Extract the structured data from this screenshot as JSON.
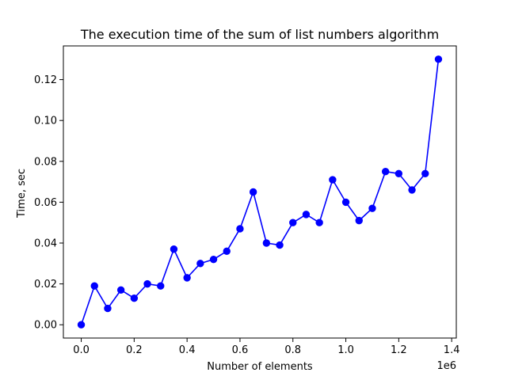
{
  "chart_data": {
    "type": "line",
    "title": "The execution time of the sum of list numbers algorithm",
    "xlabel": "Number of elements",
    "ylabel": "Time, sec",
    "x_offset_text": "1e6",
    "xlim": [
      -0.0675,
      1.4175
    ],
    "ylim": [
      -0.0065,
      0.1365
    ],
    "x_ticks": [
      0.0,
      0.2,
      0.4,
      0.6,
      0.8,
      1.0,
      1.2,
      1.4
    ],
    "x_tick_labels": [
      "0.0",
      "0.2",
      "0.4",
      "0.6",
      "0.8",
      "1.0",
      "1.2",
      "1.4"
    ],
    "y_ticks": [
      0.0,
      0.02,
      0.04,
      0.06,
      0.08,
      0.1,
      0.12
    ],
    "y_tick_labels": [
      "0.00",
      "0.02",
      "0.04",
      "0.06",
      "0.08",
      "0.10",
      "0.12"
    ],
    "grid": false,
    "color": "#0000ff",
    "marker": "circle",
    "series": [
      {
        "x": [
          0,
          50000,
          100000,
          150000,
          200000,
          250000,
          300000,
          350000,
          400000,
          450000,
          500000,
          550000,
          600000,
          650000,
          700000,
          750000,
          800000,
          850000,
          900000,
          950000,
          1000000,
          1050000,
          1100000,
          1150000,
          1200000,
          1250000,
          1300000,
          1350000
        ],
        "values": [
          0.0,
          0.019,
          0.008,
          0.017,
          0.013,
          0.02,
          0.019,
          0.037,
          0.023,
          0.03,
          0.032,
          0.036,
          0.047,
          0.065,
          0.04,
          0.039,
          0.05,
          0.054,
          0.05,
          0.071,
          0.06,
          0.051,
          0.057,
          0.075,
          0.074,
          0.066,
          0.074,
          0.13
        ]
      }
    ]
  }
}
